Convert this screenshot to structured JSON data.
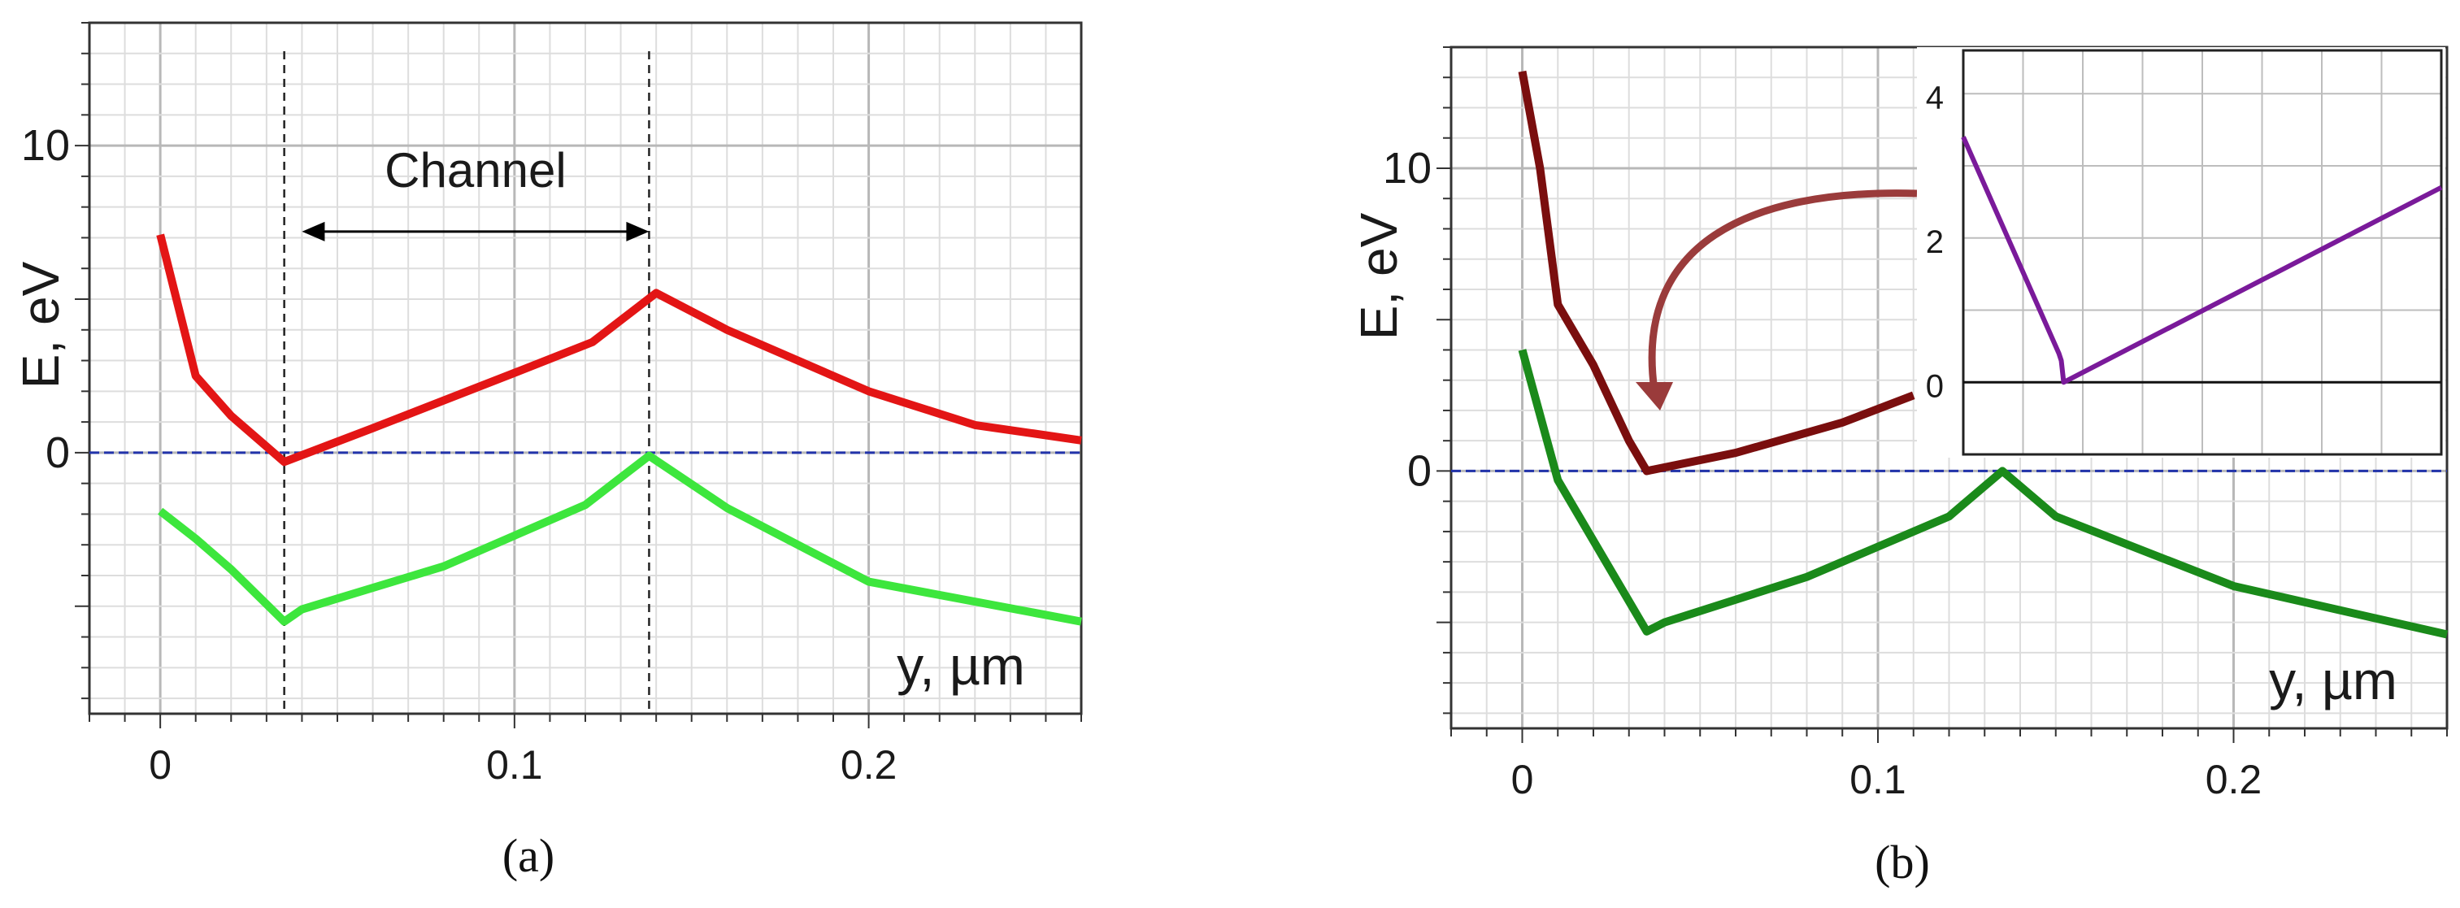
{
  "chart_data": [
    {
      "type": "line",
      "panel_label": "(a)",
      "ylabel": "E, eV",
      "xlabel": "y, µm",
      "xlim": [
        -0.02,
        0.26
      ],
      "ylim": [
        -8.5,
        14
      ],
      "x_ticks": [
        0,
        0.1,
        0.2
      ],
      "x_tick_labels": [
        "0",
        "0.1",
        "0.2"
      ],
      "y_ticks": [
        0,
        10
      ],
      "y_tick_labels": [
        "0",
        "10"
      ],
      "grid": true,
      "annotation": {
        "text": "Channel",
        "arrow_from_x": 0.04,
        "arrow_to_x": 0.138,
        "y": 7.2
      },
      "vlines": [
        0.035,
        0.138
      ],
      "hline": 0,
      "series": [
        {
          "color": "#e31515",
          "x": [
            0,
            0.01,
            0.02,
            0.03,
            0.035,
            0.06,
            0.1,
            0.122,
            0.14,
            0.16,
            0.2,
            0.23,
            0.26
          ],
          "y": [
            7.1,
            2.5,
            1.2,
            0.2,
            -0.3,
            0.8,
            2.6,
            3.6,
            5.2,
            4.0,
            2.0,
            0.9,
            0.4
          ]
        },
        {
          "color": "#3de63d",
          "x": [
            0,
            0.01,
            0.02,
            0.035,
            0.04,
            0.08,
            0.12,
            0.138,
            0.16,
            0.2,
            0.26
          ],
          "y": [
            -1.9,
            -2.8,
            -3.8,
            -5.5,
            -5.1,
            -3.7,
            -1.7,
            -0.1,
            -1.8,
            -4.2,
            -5.5
          ]
        }
      ]
    },
    {
      "type": "line",
      "panel_label": "(b)",
      "ylabel": "E, eV",
      "xlabel": "y, µm",
      "xlim": [
        -0.02,
        0.26
      ],
      "ylim": [
        -8.5,
        14
      ],
      "x_ticks": [
        0,
        0.1,
        0.2
      ],
      "x_tick_labels": [
        "0",
        "0.1",
        "0.2"
      ],
      "y_ticks": [
        0,
        10
      ],
      "y_tick_labels": [
        "0",
        "10"
      ],
      "grid": true,
      "hline": 0,
      "series": [
        {
          "color": "#7a0e0e",
          "x": [
            0,
            0.005,
            0.01,
            0.02,
            0.03,
            0.035,
            0.06,
            0.09,
            0.11
          ],
          "y": [
            13.2,
            10.0,
            5.5,
            3.5,
            1.0,
            0.0,
            0.6,
            1.6,
            2.5
          ]
        },
        {
          "color": "#1a8a1a",
          "x": [
            0,
            0.01,
            0.035,
            0.04,
            0.08,
            0.12,
            0.135,
            0.15,
            0.2,
            0.26
          ],
          "y": [
            4.0,
            -0.3,
            -5.3,
            -5.0,
            -3.5,
            -1.5,
            0.0,
            -1.5,
            -3.8,
            -5.4
          ]
        }
      ]
    },
    {
      "type": "line",
      "panel_label": "inset",
      "xlim": [
        0,
        1
      ],
      "ylim": [
        -1,
        4.6
      ],
      "y_ticks": [
        0,
        2,
        4
      ],
      "y_tick_labels": [
        "0",
        "2",
        "4"
      ],
      "grid": true,
      "hline": 0,
      "series": [
        {
          "color": "#7a1a9a",
          "x": [
            0,
            0.2,
            0.205,
            0.21,
            1.0
          ],
          "y": [
            3.4,
            0.4,
            0.3,
            0.0,
            2.7
          ]
        }
      ]
    }
  ]
}
